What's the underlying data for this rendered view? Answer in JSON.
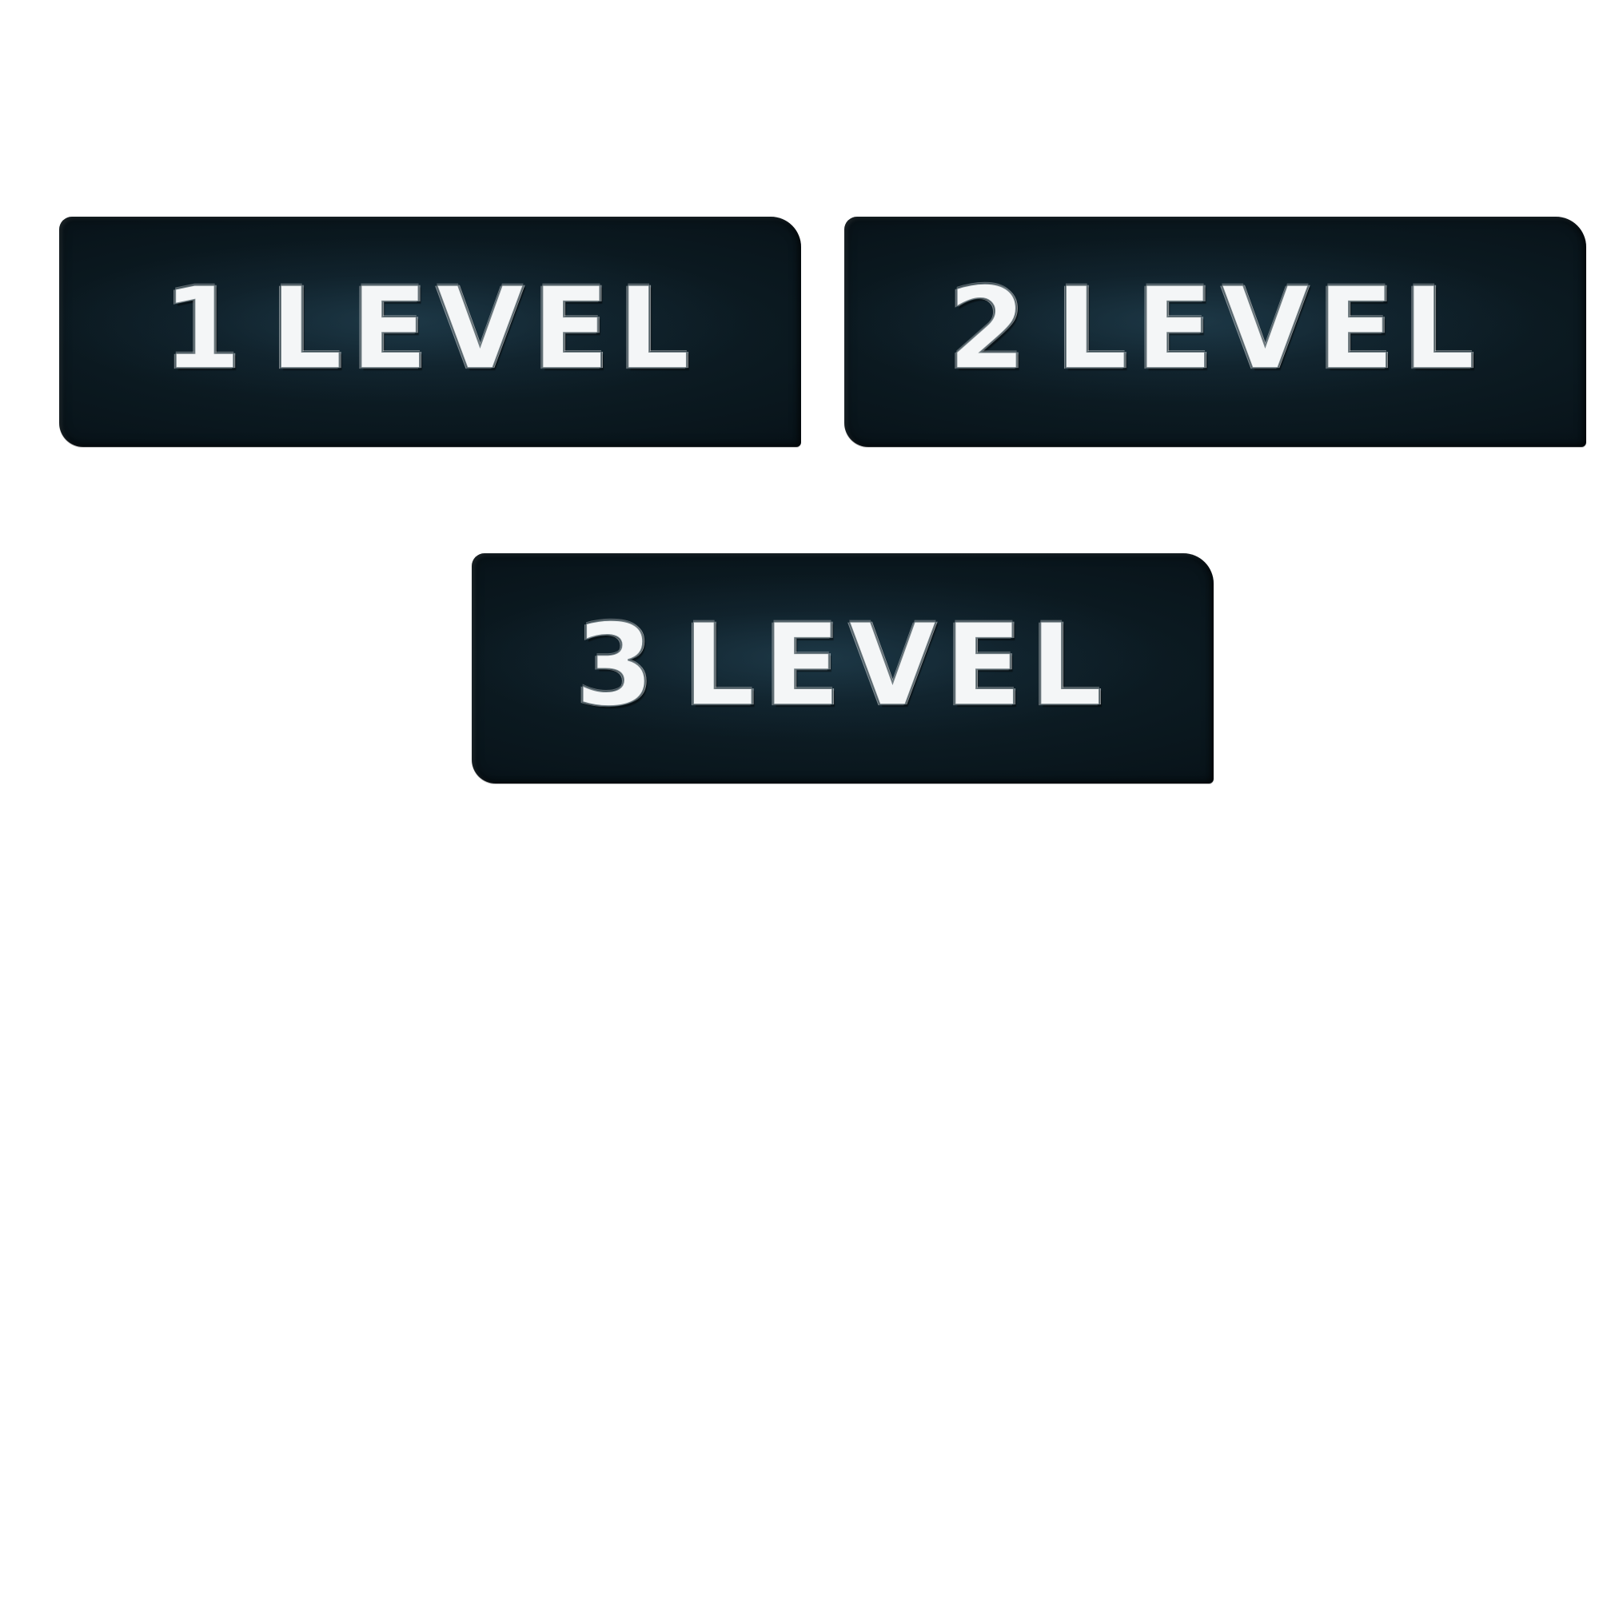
{
  "levels": [
    {
      "number": "1",
      "word": "LEVEL"
    },
    {
      "number": "2",
      "word": "LEVEL"
    },
    {
      "number": "3",
      "word": "LEVEL"
    }
  ],
  "colors": {
    "background": "#ffffff",
    "tile": "#0b1920",
    "text": "#f4f6f7"
  }
}
